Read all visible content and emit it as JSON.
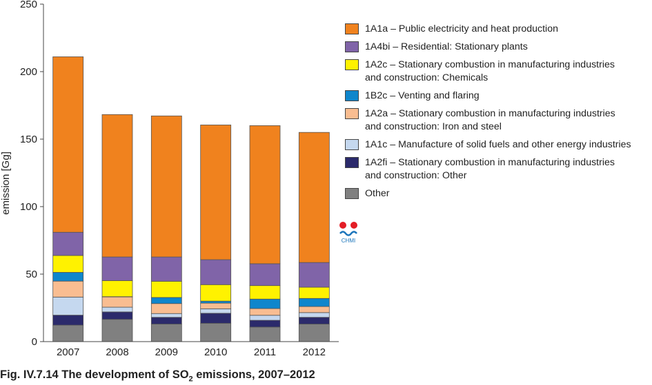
{
  "chart_data": {
    "type": "bar",
    "stacked": true,
    "categories": [
      "2007",
      "2008",
      "2009",
      "2010",
      "2011",
      "2012"
    ],
    "ylabel": "emission [Gg]",
    "ylim": [
      0,
      250
    ],
    "yticks": [
      0,
      50,
      100,
      150,
      200,
      250
    ],
    "grid": false,
    "legend_position": "right",
    "series": [
      {
        "name": "Other",
        "color": "#808080",
        "values": [
          12.2,
          16.5,
          13.0,
          13.6,
          10.8,
          13.0
        ]
      },
      {
        "name": "1A2fi – Stationary combustion in manufacturing industries\nand construction: Other",
        "color": "#2b2a6b",
        "values": [
          7.4,
          5.5,
          5.0,
          7.4,
          5.0,
          5.0
        ]
      },
      {
        "name": "1A1c – Manufacture of solid fuels and other energy industries",
        "color": "#c5d8ef",
        "values": [
          13.4,
          3.5,
          2.8,
          3.3,
          3.7,
          3.5
        ]
      },
      {
        "name": "1A2a – Stationary combustion in manufacturing industries\nand construction: Iron and steel",
        "color": "#f9bd91",
        "values": [
          11.8,
          7.6,
          7.4,
          4.2,
          5.0,
          4.5
        ]
      },
      {
        "name": "1B2c – Venting and flaring",
        "color": "#0f86cc",
        "values": [
          6.5,
          0.2,
          4.5,
          1.5,
          7.0,
          6.0
        ]
      },
      {
        "name": "1A2c – Stationary combustion in manufacturing industries\nand construction: Chemicals",
        "color": "#fff200",
        "values": [
          12.5,
          11.9,
          12.0,
          12.2,
          10.0,
          8.3
        ]
      },
      {
        "name": "1A4bi  – Residential: Stationary plants",
        "color": "#8064a8",
        "values": [
          17.2,
          17.5,
          18.0,
          18.5,
          16.2,
          18.3
        ]
      },
      {
        "name": "1A1a – Public electricity and heat production",
        "color": "#f0821e",
        "values": [
          130.0,
          105.5,
          104.5,
          99.8,
          102.3,
          96.4
        ]
      }
    ]
  },
  "legend_order": [
    7,
    6,
    5,
    4,
    3,
    2,
    1,
    0
  ],
  "logo": {
    "text": "CHMI",
    "colors": [
      "#e41e26",
      "#1b75bb"
    ]
  },
  "caption": {
    "prefix": "Fig. IV.7.14  The development of SO",
    "subscript": "2",
    "suffix": " emissions, 2007–2012"
  }
}
